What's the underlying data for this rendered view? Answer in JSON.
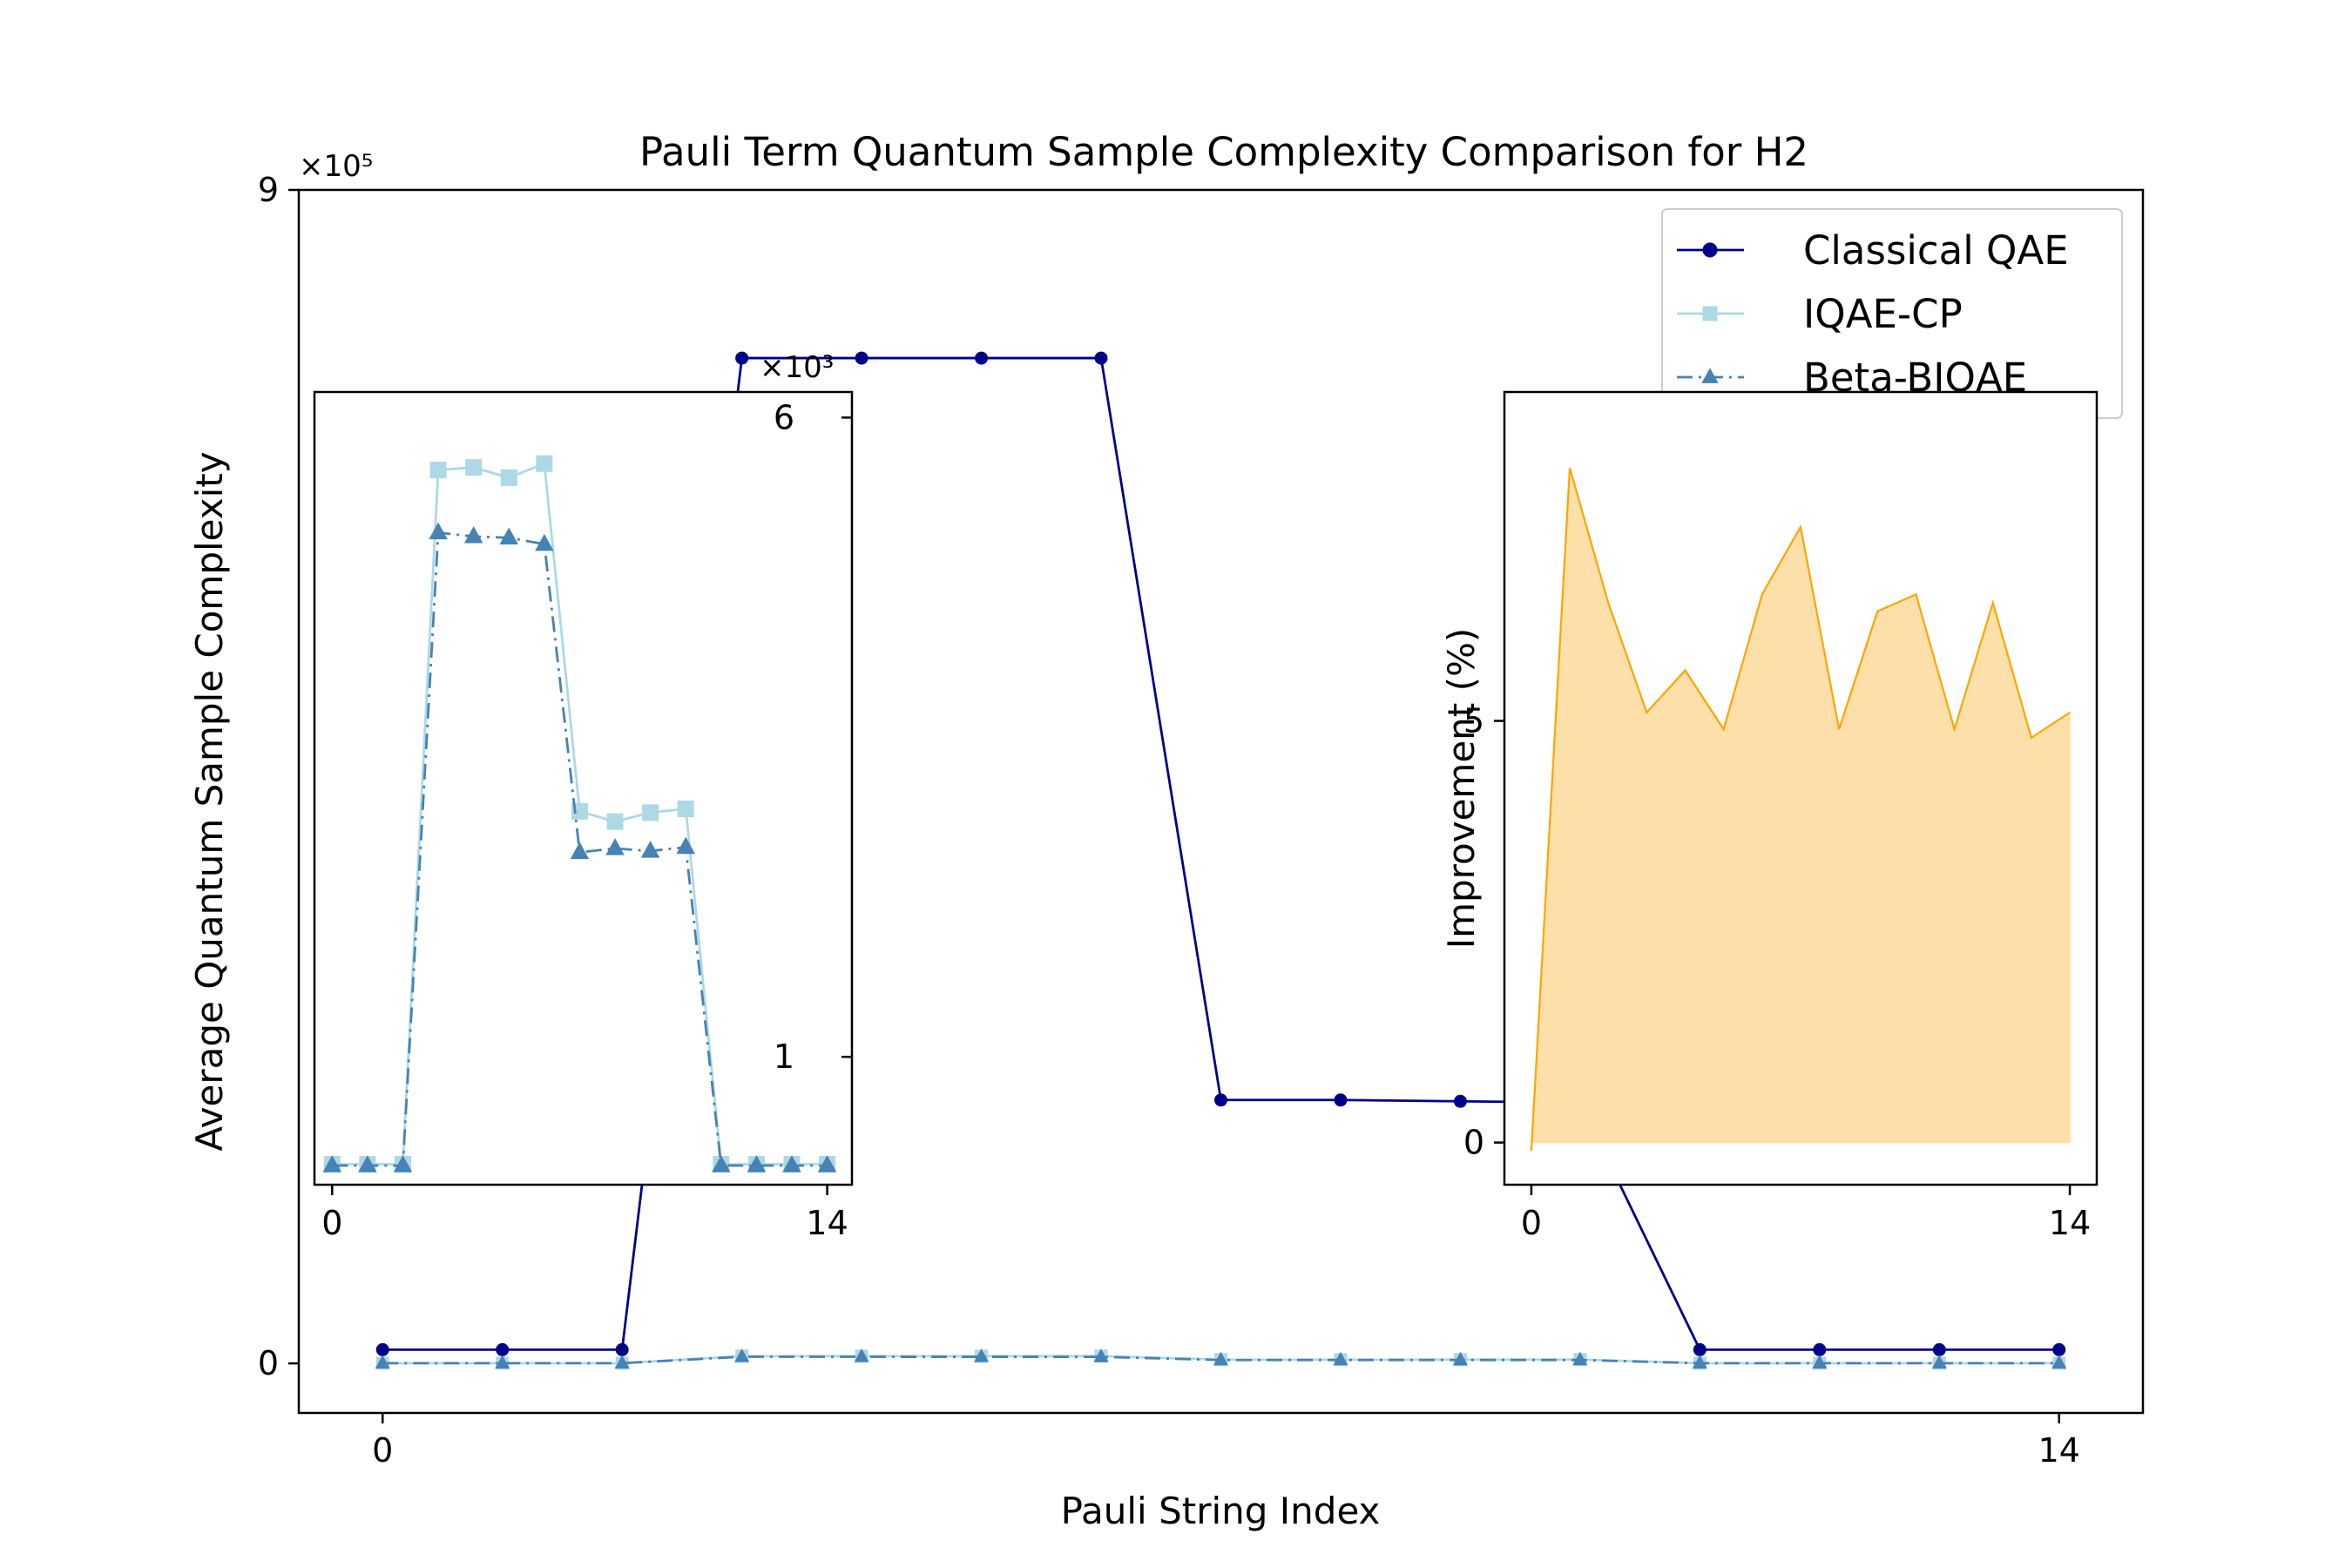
{
  "chart_data": {
    "type": "line",
    "title": "Pauli Term Quantum Sample Complexity Comparison for H2",
    "xlabel": "Pauli String Index",
    "ylabel": "Average Quantum Sample Complexity",
    "x": [
      0,
      1,
      2,
      3,
      4,
      5,
      6,
      7,
      8,
      9,
      10,
      11,
      12,
      13,
      14
    ],
    "xlim": [
      -0.7,
      14.7
    ],
    "ylim": [
      -38000,
      900000
    ],
    "xticks": [
      "0",
      "14"
    ],
    "yticks": [
      "0",
      "9"
    ],
    "y_multiplier": "×10⁵",
    "legend_position": "upper right",
    "series": [
      {
        "name": "Classical QAE",
        "color": "#00008b",
        "marker": "circle",
        "linestyle": "solid",
        "values": [
          10500,
          10500,
          10500,
          771000,
          771000,
          771000,
          771000,
          202000,
          202000,
          201000,
          200000,
          10500,
          10500,
          10500,
          10500
        ]
      },
      {
        "name": "IQAE-CP",
        "color": "#add8e6",
        "marker": "square",
        "linestyle": "solid",
        "values": [
          160,
          160,
          160,
          5590,
          5610,
          5530,
          5640,
          2920,
          2840,
          2910,
          2940,
          160,
          160,
          160,
          160
        ]
      },
      {
        "name": "Beta-BIQAE",
        "color": "#4682b4",
        "marker": "triangle",
        "linestyle": "dashdot",
        "values": [
          150,
          150,
          150,
          5100,
          5070,
          5060,
          5010,
          2600,
          2630,
          2610,
          2640,
          150,
          150,
          150,
          150
        ]
      }
    ],
    "insets": [
      {
        "type": "line",
        "position": "left",
        "xticks": [
          "0",
          "14"
        ],
        "yticks": [
          "1",
          "6"
        ],
        "y_multiplier": "×10³",
        "ylim": [
          0,
          6200
        ],
        "xlim": [
          -0.5,
          14.7
        ],
        "series_refs": [
          "IQAE-CP",
          "Beta-BIQAE"
        ]
      },
      {
        "type": "area",
        "position": "right",
        "ylabel": "Improvement (%)",
        "color": "#ffa500",
        "fill": "#fde0a9",
        "xticks": [
          "0",
          "14"
        ],
        "yticks": [
          "0",
          "5"
        ],
        "xlim": [
          -0.7,
          14.7
        ],
        "ylim": [
          -0.5,
          8.9
        ],
        "values": [
          -0.1,
          8.0,
          6.4,
          5.1,
          5.6,
          4.9,
          6.5,
          7.3,
          4.9,
          6.3,
          6.5,
          4.9,
          6.4,
          4.8,
          5.1
        ]
      }
    ]
  }
}
